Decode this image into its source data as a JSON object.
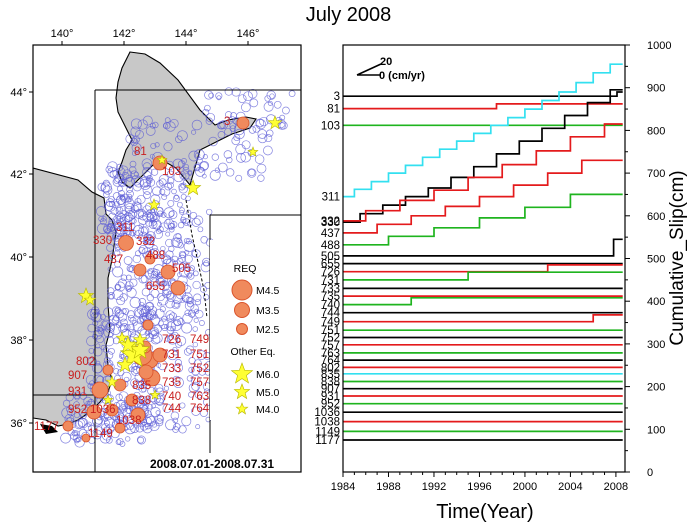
{
  "title": "July 2008",
  "map": {
    "lon_ticks": [
      "140°",
      "142°",
      "144°",
      "146°"
    ],
    "lat_ticks": [
      "44°",
      "42°",
      "40°",
      "38°",
      "36°"
    ],
    "date_range": "2008.07.01-2008.07.31",
    "legend": {
      "req_title": "REQ",
      "req_items": [
        "M4.5",
        "M3.5",
        "M2.5"
      ],
      "other_title": "Other Eq.",
      "other_items": [
        "M6.0",
        "M5.0",
        "M4.0"
      ]
    },
    "req_colors": {
      "fill": "#f08a5d",
      "edge": "#d9532b",
      "label": "#c81e1e"
    },
    "star_color": "#ffff33",
    "land_color": "#c8c8c8",
    "bg_circle_color": "#5b5bd6",
    "id_labels": [
      "3",
      "81",
      "103",
      "311",
      "330",
      "332",
      "437",
      "488",
      "505",
      "655",
      "726",
      "731",
      "733",
      "735",
      "740",
      "744",
      "749",
      "751",
      "752",
      "757",
      "763",
      "764",
      "802",
      "835",
      "838",
      "907",
      "931",
      "952",
      "1036",
      "1038",
      "1149",
      "1177"
    ]
  },
  "chart_data": {
    "type": "line",
    "title": "",
    "xlabel": "Time(Year)",
    "ylabel": "Cumulative_Slip(cm)",
    "xlim": [
      1984,
      2008.8
    ],
    "ylim": [
      0,
      1000
    ],
    "x_ticks": [
      "1984",
      "1988",
      "1992",
      "1996",
      "2000",
      "2004",
      "2008"
    ],
    "y_ticks": [
      "0",
      "100",
      "200",
      "300",
      "400",
      "500",
      "600",
      "700",
      "800",
      "900",
      "1000"
    ],
    "scale_arrow": {
      "top": "20",
      "bottom": "0 (cm/yr)"
    },
    "series_labels": [
      "3",
      "81",
      "103",
      "311",
      "330",
      "332",
      "437",
      "488",
      "505",
      "655",
      "726",
      "731",
      "733",
      "735",
      "740",
      "744",
      "749",
      "751",
      "752",
      "757",
      "763",
      "764",
      "802",
      "835",
      "838",
      "907",
      "931",
      "952",
      "1036",
      "1038",
      "1149",
      "1177"
    ],
    "colors": {
      "black": "#000000",
      "red": "#e41a1c",
      "green": "#1fb41f",
      "cyan": "#33e0f0"
    },
    "series": [
      {
        "name": "3",
        "color": "black",
        "x": [
          1984,
          2008.1,
          2008.1,
          2008.6
        ],
        "y": [
          880,
          880,
          890,
          890
        ]
      },
      {
        "name": "81",
        "color": "red",
        "x": [
          1984,
          1997.5,
          1997.5,
          2008.6
        ],
        "y": [
          851,
          851,
          862,
          862
        ]
      },
      {
        "name": "103",
        "color": "green",
        "x": [
          1984,
          2008.6
        ],
        "y": [
          812,
          812
        ]
      },
      {
        "name": "311",
        "color": "cyan",
        "x": [
          1984,
          1985,
          1985,
          1986.5,
          1986.5,
          1988,
          1988,
          1989.5,
          1989.5,
          1991,
          1991,
          1992.5,
          1992.5,
          1994,
          1994,
          1995.5,
          1995.5,
          1997,
          1997,
          1998.5,
          1998.5,
          2000,
          2000,
          2001.5,
          2001.5,
          2003,
          2003,
          2004.5,
          2004.5,
          2006,
          2006,
          2007.5,
          2007.5,
          2008.6
        ],
        "y": [
          645,
          645,
          662,
          662,
          680,
          680,
          700,
          700,
          718,
          718,
          737,
          737,
          756,
          756,
          775,
          775,
          793,
          793,
          812,
          812,
          830,
          830,
          850,
          850,
          870,
          870,
          890,
          890,
          912,
          912,
          935,
          935,
          955,
          955
        ]
      },
      {
        "name": "330",
        "color": "black",
        "x": [
          1984,
          1985.5,
          1985.5,
          1987.5,
          1987.5,
          1989.5,
          1989.5,
          1991.5,
          1991.5,
          1993.5,
          1993.5,
          1995.5,
          1995.5,
          1997.5,
          1997.5,
          1999.5,
          1999.5,
          2001.5,
          2001.5,
          2003.5,
          2003.5,
          2005.5,
          2005.5,
          2007.5,
          2007.5,
          2008.6
        ],
        "y": [
          585,
          585,
          605,
          605,
          625,
          625,
          645,
          645,
          665,
          665,
          690,
          690,
          715,
          715,
          745,
          745,
          775,
          775,
          805,
          805,
          835,
          835,
          865,
          865,
          895,
          895
        ]
      },
      {
        "name": "332",
        "color": "red",
        "x": [
          1984,
          1986,
          1986,
          1989,
          1989,
          1992,
          1992,
          1995,
          1995,
          1998,
          1998,
          2001,
          2001,
          2004,
          2004,
          2007,
          2007,
          2008.6
        ],
        "y": [
          588,
          588,
          612,
          612,
          636,
          636,
          660,
          660,
          690,
          690,
          720,
          720,
          752,
          752,
          785,
          785,
          815,
          815
        ]
      },
      {
        "name": "437",
        "color": "red",
        "x": [
          1984,
          1987,
          1987,
          1990,
          1990,
          1993,
          1993,
          1996,
          1996,
          1999,
          1999,
          2002,
          2002,
          2005,
          2005,
          2008.6
        ],
        "y": [
          560,
          560,
          580,
          580,
          600,
          600,
          622,
          622,
          645,
          645,
          672,
          672,
          700,
          700,
          730,
          730
        ]
      },
      {
        "name": "488",
        "color": "green",
        "x": [
          1984,
          1988,
          1988,
          1992,
          1992,
          1996,
          1996,
          2000,
          2000,
          2004,
          2004,
          2008.6
        ],
        "y": [
          532,
          532,
          552,
          552,
          572,
          572,
          595,
          595,
          620,
          620,
          650,
          650
        ]
      },
      {
        "name": "505",
        "color": "black",
        "x": [
          1984,
          2007.8,
          2007.8,
          2008.6
        ],
        "y": [
          506,
          506,
          545,
          545
        ]
      },
      {
        "name": "655",
        "color": "black",
        "x": [
          1984,
          2008.6
        ],
        "y": [
          488,
          488
        ]
      },
      {
        "name": "726",
        "color": "red",
        "x": [
          1984,
          2002,
          2002,
          2008.6
        ],
        "y": [
          469,
          469,
          485,
          485
        ]
      },
      {
        "name": "731",
        "color": "green",
        "x": [
          1984,
          1995,
          1995,
          2008.6
        ],
        "y": [
          450,
          450,
          468,
          468
        ]
      },
      {
        "name": "733",
        "color": "black",
        "x": [
          1984,
          2008.6
        ],
        "y": [
          430,
          430
        ]
      },
      {
        "name": "735",
        "color": "red",
        "x": [
          1984,
          2008.6
        ],
        "y": [
          412,
          412
        ]
      },
      {
        "name": "740",
        "color": "green",
        "x": [
          1984,
          1990,
          1990,
          2008.6
        ],
        "y": [
          392,
          392,
          408,
          408
        ]
      },
      {
        "name": "744",
        "color": "black",
        "x": [
          1984,
          2008.6
        ],
        "y": [
          373,
          373
        ]
      },
      {
        "name": "749",
        "color": "red",
        "x": [
          1984,
          2006,
          2006,
          2008.6
        ],
        "y": [
          352,
          352,
          368,
          368
        ]
      },
      {
        "name": "751",
        "color": "green",
        "x": [
          1984,
          2008.6
        ],
        "y": [
          332,
          332
        ]
      },
      {
        "name": "752",
        "color": "black",
        "x": [
          1984,
          2008.6
        ],
        "y": [
          315,
          315
        ]
      },
      {
        "name": "757",
        "color": "red",
        "x": [
          1984,
          2008.6
        ],
        "y": [
          298,
          298
        ]
      },
      {
        "name": "763",
        "color": "green",
        "x": [
          1984,
          2008.6
        ],
        "y": [
          279,
          279
        ]
      },
      {
        "name": "764",
        "color": "black",
        "x": [
          1984,
          2008.6
        ],
        "y": [
          262,
          262
        ]
      },
      {
        "name": "802",
        "color": "red",
        "x": [
          1984,
          2008.6
        ],
        "y": [
          245,
          245
        ]
      },
      {
        "name": "835",
        "color": "cyan",
        "x": [
          1984,
          2008.6
        ],
        "y": [
          230,
          230
        ]
      },
      {
        "name": "838",
        "color": "green",
        "x": [
          1984,
          2008.6
        ],
        "y": [
          212,
          212
        ]
      },
      {
        "name": "907",
        "color": "black",
        "x": [
          1984,
          2008.6
        ],
        "y": [
          195,
          195
        ]
      },
      {
        "name": "931",
        "color": "red",
        "x": [
          1984,
          2008.6
        ],
        "y": [
          178,
          178
        ]
      },
      {
        "name": "952",
        "color": "green",
        "x": [
          1984,
          2008.6
        ],
        "y": [
          160,
          160
        ]
      },
      {
        "name": "1036",
        "color": "black",
        "x": [
          1984,
          2008.6
        ],
        "y": [
          140,
          140
        ]
      },
      {
        "name": "1038",
        "color": "red",
        "x": [
          1984,
          2008.6
        ],
        "y": [
          118,
          118
        ]
      },
      {
        "name": "1149",
        "color": "green",
        "x": [
          1984,
          2008.6
        ],
        "y": [
          95,
          95
        ]
      },
      {
        "name": "1177",
        "color": "black",
        "x": [
          1984,
          2008.6
        ],
        "y": [
          75,
          75
        ]
      }
    ]
  }
}
